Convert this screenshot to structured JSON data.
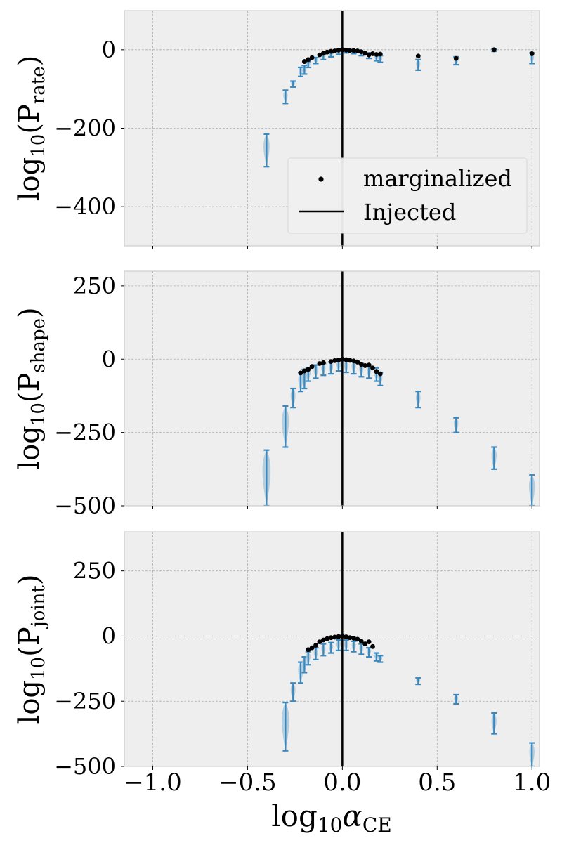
{
  "chart_data": {
    "type": "scatter",
    "xlabel": "log10 αCE",
    "xlabel_parts": {
      "base": "log",
      "sub1": "10",
      "sym": "α",
      "sub2": "CE"
    },
    "xlim": [
      -1.15,
      1.04
    ],
    "xticks": [
      -1.0,
      -0.5,
      0.0,
      0.5,
      1.0
    ],
    "xtick_labels": [
      "−1.0",
      "−0.5",
      "0.0",
      "0.5",
      "1.0"
    ],
    "injected_x": 0.0,
    "legend": {
      "placement": "lower-right of top panel",
      "marginalized_label": "marginalized",
      "injected_label": "Injected"
    },
    "colors": {
      "violin": "#a9c8dc",
      "errorbar": "#3a88be",
      "marker": "#000000",
      "injected": "#000000",
      "axes_bg": "#eeeeee",
      "grid": "#b0b0b0"
    },
    "panels": [
      {
        "ylabel": "log10(Prate)",
        "ylabel_parts": {
          "base": "log",
          "sub1": "10",
          "p": "P",
          "sub2": "rate"
        },
        "ylim": [
          -500,
          100
        ],
        "yticks": [
          0,
          -200,
          -400
        ],
        "ytick_labels": [
          "0",
          "−200",
          "−400"
        ],
        "show_xticklabels": false,
        "errorbars": [
          {
            "x": -0.4,
            "lo": -298,
            "hi": -215
          },
          {
            "x": -0.3,
            "lo": -137,
            "hi": -103
          },
          {
            "x": -0.26,
            "lo": -95,
            "hi": -80
          },
          {
            "x": -0.22,
            "lo": -68,
            "hi": -45
          },
          {
            "x": -0.2,
            "lo": -62,
            "hi": -40
          },
          {
            "x": -0.18,
            "lo": -45,
            "hi": -30
          },
          {
            "x": -0.14,
            "lo": -35,
            "hi": -20
          },
          {
            "x": -0.1,
            "lo": -25,
            "hi": -12
          },
          {
            "x": -0.06,
            "lo": -18,
            "hi": -8
          },
          {
            "x": -0.02,
            "lo": -12,
            "hi": -3
          },
          {
            "x": 0.02,
            "lo": -8,
            "hi": -1
          },
          {
            "x": 0.06,
            "lo": -10,
            "hi": -2
          },
          {
            "x": 0.1,
            "lo": -15,
            "hi": -5
          },
          {
            "x": 0.14,
            "lo": -22,
            "hi": -8
          },
          {
            "x": 0.18,
            "lo": -28,
            "hi": -12
          },
          {
            "x": 0.2,
            "lo": -32,
            "hi": -15
          },
          {
            "x": 0.4,
            "lo": -52,
            "hi": -25
          },
          {
            "x": 0.6,
            "lo": -38,
            "hi": -18
          },
          {
            "x": 0.8,
            "lo": -4,
            "hi": 2
          },
          {
            "x": 1.0,
            "lo": -35,
            "hi": -8
          }
        ],
        "points": [
          {
            "x": -0.2,
            "y": -30
          },
          {
            "x": -0.18,
            "y": -25
          },
          {
            "x": -0.16,
            "y": -20
          },
          {
            "x": -0.12,
            "y": -13
          },
          {
            "x": -0.1,
            "y": -9
          },
          {
            "x": -0.08,
            "y": -6
          },
          {
            "x": -0.06,
            "y": -4
          },
          {
            "x": -0.04,
            "y": -3
          },
          {
            "x": -0.02,
            "y": -1
          },
          {
            "x": 0.0,
            "y": 0
          },
          {
            "x": 0.02,
            "y": -1
          },
          {
            "x": 0.04,
            "y": -2
          },
          {
            "x": 0.06,
            "y": -2
          },
          {
            "x": 0.08,
            "y": -3
          },
          {
            "x": 0.1,
            "y": -5
          },
          {
            "x": 0.12,
            "y": -9
          },
          {
            "x": 0.14,
            "y": -13
          },
          {
            "x": 0.16,
            "y": -10
          },
          {
            "x": 0.18,
            "y": -12
          },
          {
            "x": 0.2,
            "y": -11
          },
          {
            "x": 0.4,
            "y": -16
          },
          {
            "x": 0.6,
            "y": -22
          },
          {
            "x": 0.8,
            "y": 0
          },
          {
            "x": 1.0,
            "y": -10
          }
        ]
      },
      {
        "ylabel": "log10(Pshape)",
        "ylabel_parts": {
          "base": "log",
          "sub1": "10",
          "p": "P",
          "sub2": "shape"
        },
        "ylim": [
          -500,
          300
        ],
        "yticks": [
          250,
          0,
          -250,
          -500
        ],
        "ytick_labels": [
          "250",
          "0",
          "−250",
          "−500"
        ],
        "show_xticklabels": false,
        "errorbars": [
          {
            "x": -0.4,
            "lo": -500,
            "hi": -310
          },
          {
            "x": -0.3,
            "lo": -300,
            "hi": -160
          },
          {
            "x": -0.26,
            "lo": -165,
            "hi": -100
          },
          {
            "x": -0.22,
            "lo": -110,
            "hi": -45
          },
          {
            "x": -0.2,
            "lo": -100,
            "hi": -35
          },
          {
            "x": -0.18,
            "lo": -75,
            "hi": -30
          },
          {
            "x": -0.14,
            "lo": -65,
            "hi": -20
          },
          {
            "x": -0.1,
            "lo": -55,
            "hi": -15
          },
          {
            "x": -0.06,
            "lo": -50,
            "hi": -10
          },
          {
            "x": -0.02,
            "lo": -40,
            "hi": -5
          },
          {
            "x": 0.02,
            "lo": -45,
            "hi": -5
          },
          {
            "x": 0.06,
            "lo": -50,
            "hi": -8
          },
          {
            "x": 0.1,
            "lo": -60,
            "hi": -15
          },
          {
            "x": 0.14,
            "lo": -65,
            "hi": -20
          },
          {
            "x": 0.18,
            "lo": -75,
            "hi": -30
          },
          {
            "x": 0.2,
            "lo": -90,
            "hi": -45
          },
          {
            "x": 0.4,
            "lo": -165,
            "hi": -110
          },
          {
            "x": 0.6,
            "lo": -250,
            "hi": -200
          },
          {
            "x": 0.8,
            "lo": -375,
            "hi": -300
          },
          {
            "x": 1.0,
            "lo": -500,
            "hi": -395
          }
        ],
        "points": [
          {
            "x": -0.22,
            "y": -47
          },
          {
            "x": -0.2,
            "y": -40
          },
          {
            "x": -0.18,
            "y": -35
          },
          {
            "x": -0.16,
            "y": -25
          },
          {
            "x": -0.12,
            "y": -15
          },
          {
            "x": -0.1,
            "y": -12
          },
          {
            "x": -0.06,
            "y": -8
          },
          {
            "x": -0.04,
            "y": -5
          },
          {
            "x": -0.02,
            "y": -3
          },
          {
            "x": 0.0,
            "y": 0
          },
          {
            "x": 0.02,
            "y": -2
          },
          {
            "x": 0.04,
            "y": -4
          },
          {
            "x": 0.06,
            "y": -6
          },
          {
            "x": 0.08,
            "y": -10
          },
          {
            "x": 0.1,
            "y": -18
          },
          {
            "x": 0.12,
            "y": -22
          },
          {
            "x": 0.14,
            "y": -20
          },
          {
            "x": 0.16,
            "y": -30
          },
          {
            "x": 0.18,
            "y": -42
          },
          {
            "x": 0.2,
            "y": -50
          }
        ]
      },
      {
        "ylabel": "log10(Pjoint)",
        "ylabel_parts": {
          "base": "log",
          "sub1": "10",
          "p": "P",
          "sub2": "joint"
        },
        "ylim": [
          -500,
          400
        ],
        "yticks": [
          250,
          0,
          -250,
          -500
        ],
        "ytick_labels": [
          "250",
          "0",
          "−250",
          "−500"
        ],
        "show_xticklabels": true,
        "errorbars": [
          {
            "x": -0.3,
            "lo": -440,
            "hi": -255
          },
          {
            "x": -0.26,
            "lo": -250,
            "hi": -180
          },
          {
            "x": -0.22,
            "lo": -180,
            "hi": -100
          },
          {
            "x": -0.2,
            "lo": -140,
            "hi": -80
          },
          {
            "x": -0.18,
            "lo": -110,
            "hi": -60
          },
          {
            "x": -0.14,
            "lo": -90,
            "hi": -45
          },
          {
            "x": -0.1,
            "lo": -75,
            "hi": -30
          },
          {
            "x": -0.06,
            "lo": -65,
            "hi": -25
          },
          {
            "x": -0.02,
            "lo": -55,
            "hi": -15
          },
          {
            "x": 0.02,
            "lo": -55,
            "hi": -15
          },
          {
            "x": 0.06,
            "lo": -60,
            "hi": -20
          },
          {
            "x": 0.1,
            "lo": -70,
            "hi": -30
          },
          {
            "x": 0.14,
            "lo": -80,
            "hi": -45
          },
          {
            "x": 0.18,
            "lo": -95,
            "hi": -65
          },
          {
            "x": 0.2,
            "lo": -100,
            "hi": -75
          },
          {
            "x": 0.4,
            "lo": -185,
            "hi": -160
          },
          {
            "x": 0.6,
            "lo": -260,
            "hi": -225
          },
          {
            "x": 0.8,
            "lo": -375,
            "hi": -295
          },
          {
            "x": 1.0,
            "lo": -500,
            "hi": -410
          }
        ],
        "points": [
          {
            "x": -0.18,
            "y": -52
          },
          {
            "x": -0.16,
            "y": -45
          },
          {
            "x": -0.14,
            "y": -35
          },
          {
            "x": -0.12,
            "y": -22
          },
          {
            "x": -0.1,
            "y": -15
          },
          {
            "x": -0.08,
            "y": -10
          },
          {
            "x": -0.06,
            "y": -6
          },
          {
            "x": -0.04,
            "y": -4
          },
          {
            "x": -0.02,
            "y": -2
          },
          {
            "x": 0.0,
            "y": 0
          },
          {
            "x": 0.02,
            "y": -3
          },
          {
            "x": 0.04,
            "y": -6
          },
          {
            "x": 0.06,
            "y": -8
          },
          {
            "x": 0.08,
            "y": -12
          },
          {
            "x": 0.1,
            "y": -20
          },
          {
            "x": 0.12,
            "y": -30
          },
          {
            "x": 0.14,
            "y": -22
          },
          {
            "x": 0.16,
            "y": -40
          }
        ]
      }
    ]
  }
}
